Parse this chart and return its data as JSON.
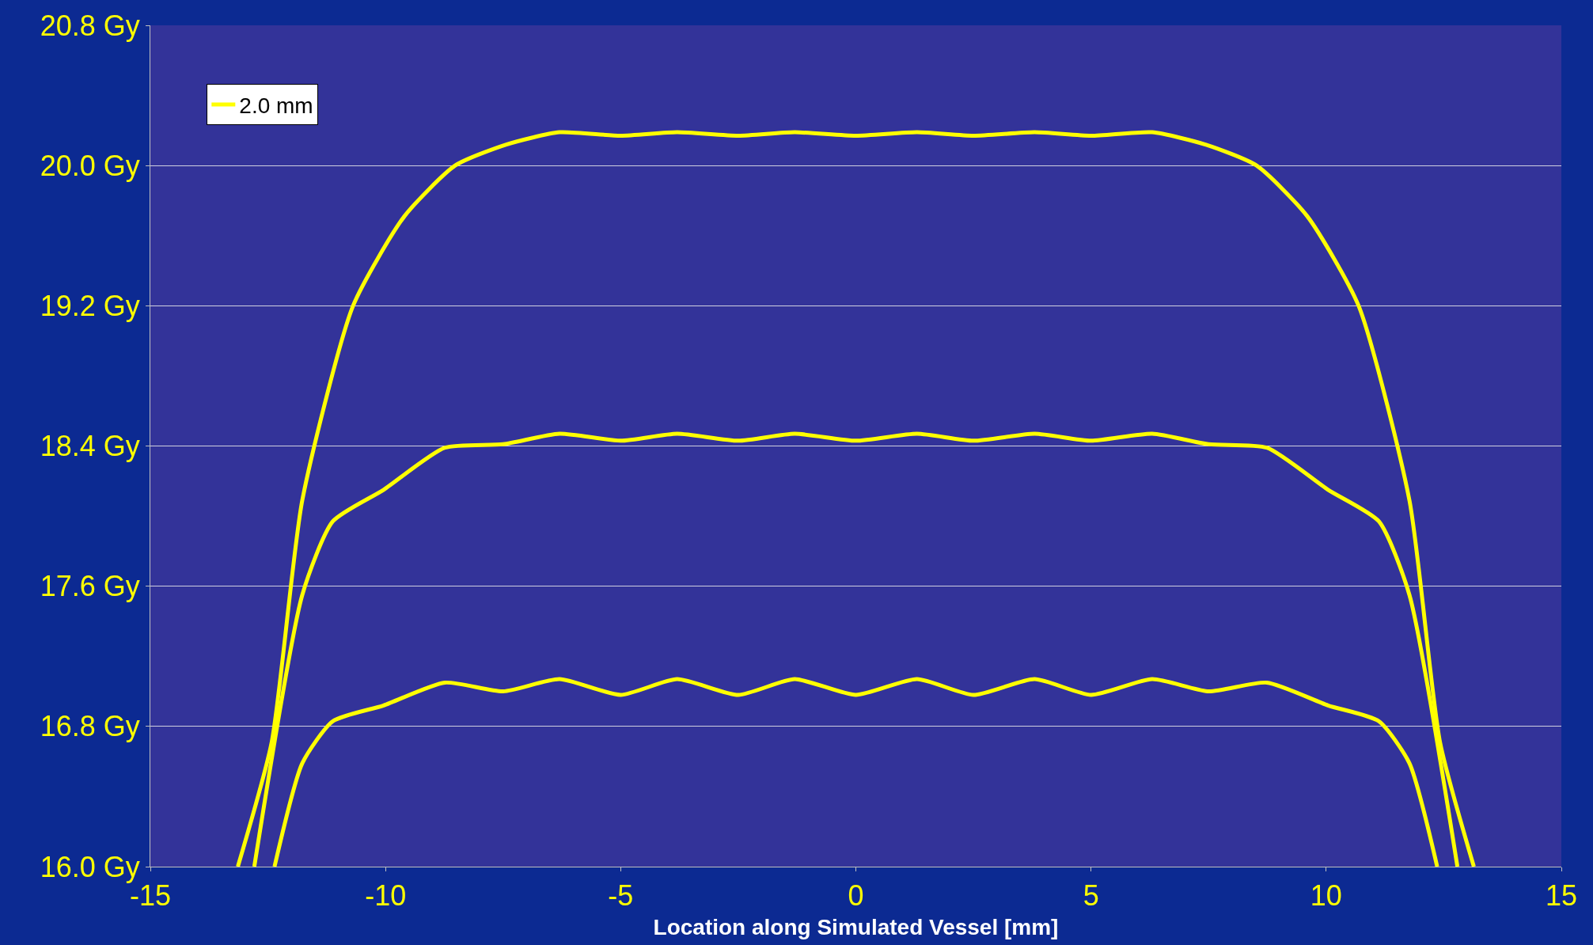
{
  "chart_data": {
    "type": "line",
    "xlabel": "Location along Simulated Vessel [mm]",
    "xlim": [
      -15,
      15
    ],
    "xticks": [
      -15,
      -10,
      -5,
      0,
      5,
      10,
      15
    ],
    "ylim": [
      16.0,
      20.8
    ],
    "yticks": [
      {
        "value": 16.0,
        "label": "16.0 Gy"
      },
      {
        "value": 16.8,
        "label": "16.8 Gy"
      },
      {
        "value": 17.6,
        "label": "17.6 Gy"
      },
      {
        "value": 18.4,
        "label": "18.4 Gy"
      },
      {
        "value": 19.2,
        "label": "19.2 Gy"
      },
      {
        "value": 20.0,
        "label": "20.0 Gy"
      },
      {
        "value": 20.8,
        "label": "20.8 Gy"
      }
    ],
    "grid": "y",
    "legend": "top left",
    "marker": "none",
    "line_style": "solid",
    "series": [
      {
        "name": "2.0 mm",
        "color": "#ffff00",
        "x": [
          -13.14,
          -12.42,
          -11.77,
          -10.69,
          -9.6,
          -8.52,
          -7.43,
          -6.3,
          -5,
          -3.8,
          -2.5,
          -1.3,
          0,
          1.3,
          2.5,
          3.8,
          5,
          6.3,
          7.43,
          8.52,
          9.6,
          10.69,
          11.77,
          12.42,
          13.14
        ],
        "values": [
          16.0,
          16.71,
          18.09,
          19.2,
          19.71,
          20.0,
          20.12,
          20.19,
          20.17,
          20.19,
          20.17,
          20.19,
          20.17,
          20.19,
          20.17,
          20.19,
          20.17,
          20.19,
          20.12,
          20.0,
          19.71,
          19.2,
          18.09,
          16.71,
          16.0
        ]
      },
      {
        "color": "#ffff00",
        "x": [
          -12.79,
          -11.77,
          -11.12,
          -10.04,
          -8.74,
          -7.5,
          -6.3,
          -5,
          -3.8,
          -2.5,
          -1.3,
          0,
          1.3,
          2.5,
          3.8,
          5,
          6.3,
          7.5,
          8.74,
          10.04,
          11.12,
          11.77,
          12.79
        ],
        "values": [
          16.0,
          17.55,
          17.97,
          18.15,
          18.39,
          18.41,
          18.47,
          18.43,
          18.47,
          18.43,
          18.47,
          18.43,
          18.47,
          18.43,
          18.47,
          18.43,
          18.47,
          18.41,
          18.39,
          18.15,
          17.97,
          17.55,
          16.0
        ]
      },
      {
        "color": "#ffff00",
        "x": [
          -12.36,
          -11.77,
          -11.12,
          -10.04,
          -8.74,
          -7.5,
          -6.3,
          -5,
          -3.8,
          -2.5,
          -1.3,
          0,
          1.3,
          2.5,
          3.8,
          5,
          6.3,
          7.5,
          8.74,
          10.04,
          11.12,
          11.77,
          12.36
        ],
        "values": [
          16.0,
          16.59,
          16.83,
          16.92,
          17.05,
          17.0,
          17.07,
          16.98,
          17.07,
          16.98,
          17.07,
          16.98,
          17.07,
          16.98,
          17.07,
          16.98,
          17.07,
          17.0,
          17.05,
          16.92,
          16.83,
          16.59,
          16.0
        ]
      }
    ]
  }
}
